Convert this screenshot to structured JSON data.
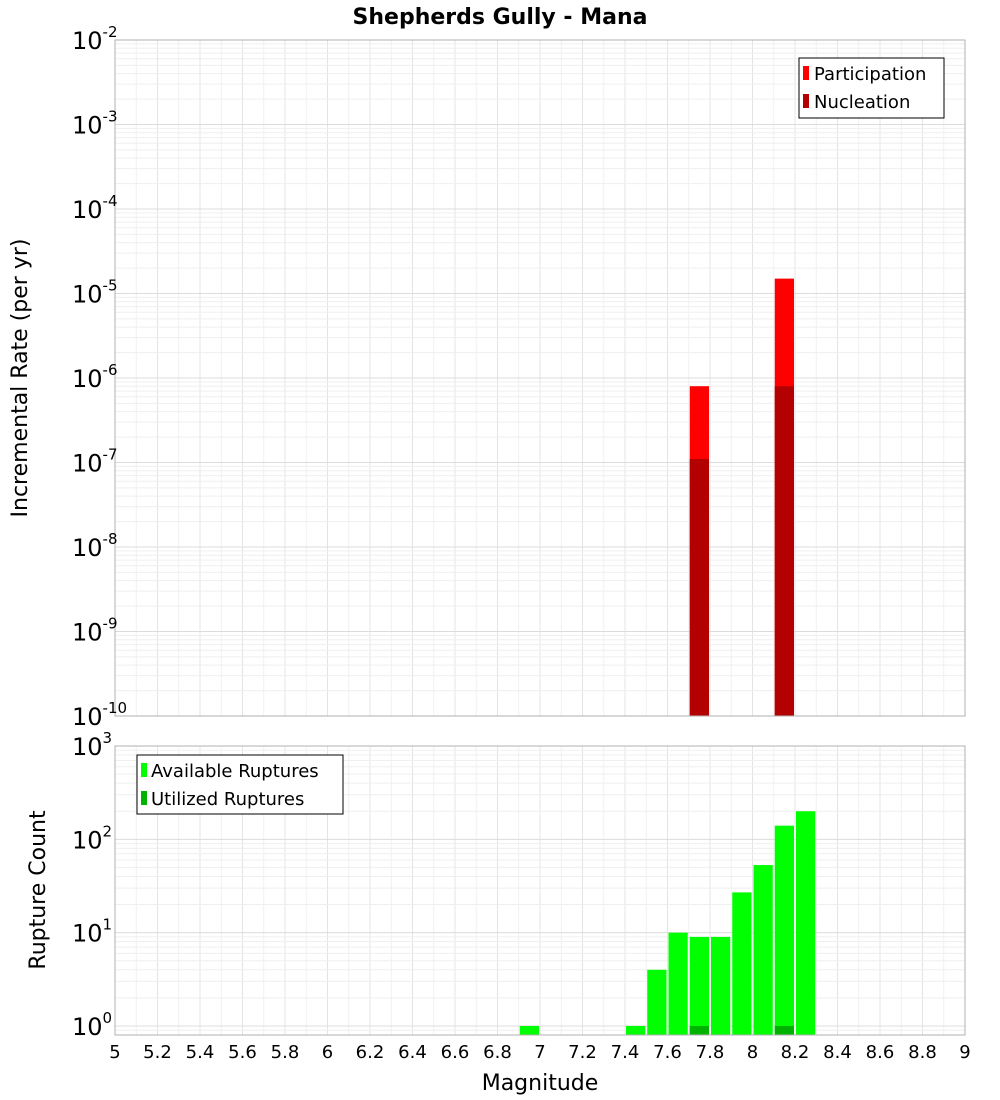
{
  "chart_data": {
    "title": "Shepherds Gully - Mana",
    "xlabel": "Magnitude",
    "x_ticks": [
      "5",
      "5.2",
      "5.4",
      "5.6",
      "5.8",
      "6",
      "6.2",
      "6.4",
      "6.6",
      "6.8",
      "7",
      "7.2",
      "7.4",
      "7.6",
      "7.8",
      "8",
      "8.2",
      "8.4",
      "8.6",
      "8.8",
      "9"
    ],
    "xlim": [
      5,
      9
    ],
    "panels": [
      {
        "type": "bar",
        "scale": "log",
        "ylabel": "Incremental Rate (per yr)",
        "ylim": [
          1e-10,
          0.01
        ],
        "y_ticks": [
          {
            "base": "10",
            "exp": "-10"
          },
          {
            "base": "10",
            "exp": "-9"
          },
          {
            "base": "10",
            "exp": "-8"
          },
          {
            "base": "10",
            "exp": "-7"
          },
          {
            "base": "10",
            "exp": "-6"
          },
          {
            "base": "10",
            "exp": "-5"
          },
          {
            "base": "10",
            "exp": "-4"
          },
          {
            "base": "10",
            "exp": "-3"
          },
          {
            "base": "10",
            "exp": "-2"
          }
        ],
        "legend_position": "top-right",
        "series": [
          {
            "name": "Participation",
            "color": "#ff0000",
            "x": [
              7.75,
              8.15
            ],
            "values": [
              8e-07,
              1.5e-05
            ]
          },
          {
            "name": "Nucleation",
            "color": "#b30000",
            "x": [
              7.75,
              8.15
            ],
            "values": [
              1.1e-07,
              8e-07
            ]
          }
        ]
      },
      {
        "type": "bar",
        "scale": "log",
        "ylabel": "Rupture Count",
        "ylim": [
          0.8,
          1000
        ],
        "y_ticks": [
          {
            "base": "10",
            "exp": "0"
          },
          {
            "base": "10",
            "exp": "1"
          },
          {
            "base": "10",
            "exp": "2"
          },
          {
            "base": "10",
            "exp": "3"
          }
        ],
        "legend_position": "top-left",
        "series": [
          {
            "name": "Available Ruptures",
            "color": "#00ff00",
            "x": [
              6.95,
              7.45,
              7.55,
              7.65,
              7.75,
              7.85,
              7.95,
              8.05,
              8.15,
              8.25
            ],
            "values": [
              1,
              1,
              4,
              10,
              9,
              9,
              27,
              53,
              140,
              200
            ]
          },
          {
            "name": "Utilized Ruptures",
            "color": "#00b300",
            "x": [
              7.75,
              8.15
            ],
            "values": [
              1,
              1
            ]
          }
        ]
      }
    ]
  }
}
